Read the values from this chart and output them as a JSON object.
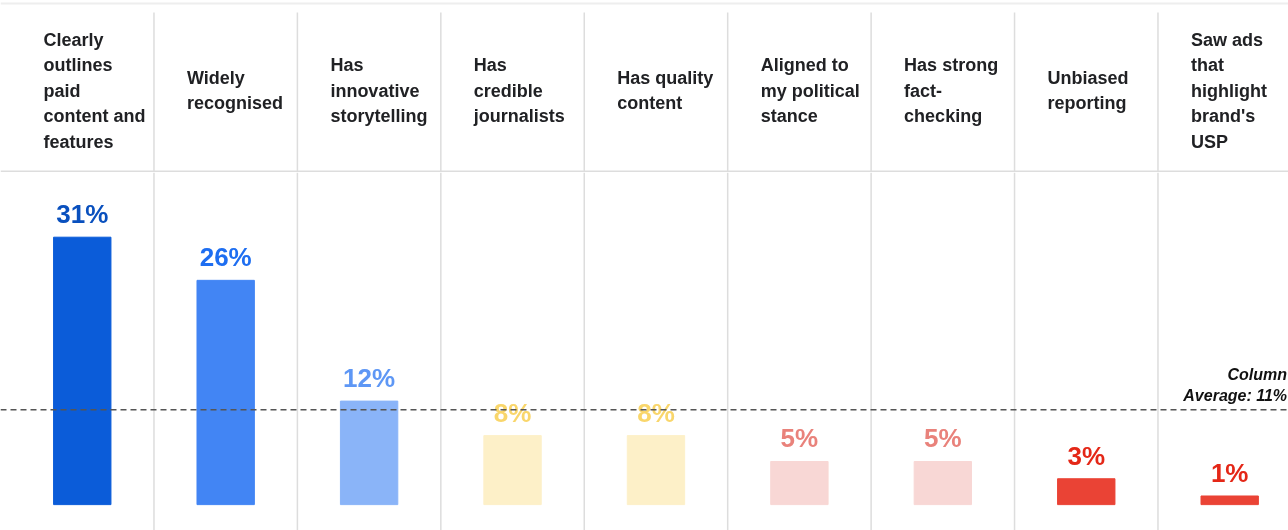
{
  "chart_data": {
    "type": "bar",
    "categories": [
      "Clearly outlines paid content and features",
      "Widely recognised",
      "Has innovative storytelling",
      "Has credible journalists",
      "Has quality content",
      "Aligned to my political stance",
      "Has strong fact-checking",
      "Unbiased reporting",
      "Saw ads that highlight brand's USP"
    ],
    "values": [
      31,
      26,
      12,
      8,
      8,
      5,
      5,
      3,
      1
    ],
    "value_labels": [
      "31%",
      "26%",
      "12%",
      "8%",
      "8%",
      "5%",
      "5%",
      "3%",
      "1%"
    ],
    "colors": [
      "#0b5cd9",
      "#4285f4",
      "#8ab4f8",
      "#fdf0c8",
      "#fdf0c8",
      "#f8d7d5",
      "#f8d7d5",
      "#ea4335",
      "#ea4335"
    ],
    "ylim": [
      -3,
      38.5
    ],
    "grid": "x",
    "ref_lines": [
      {
        "axis": "y",
        "value": 11,
        "label": "Column Average: 11%",
        "color": "#555555",
        "line_style": "dashed"
      }
    ]
  }
}
